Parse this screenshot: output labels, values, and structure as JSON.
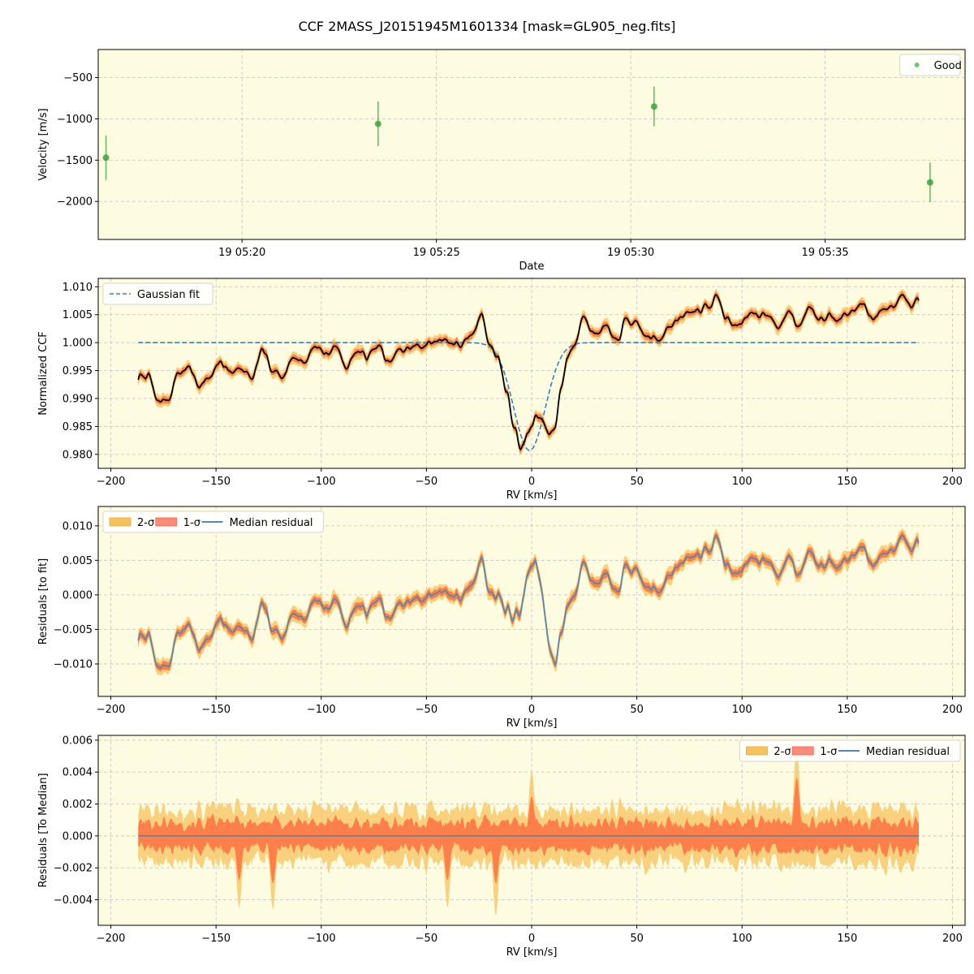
{
  "figure": {
    "title": "CCF 2MASS_J20151945M1601334 [mask=GL905_neg.fits]",
    "colors": {
      "axes_bg": "#fdfce1",
      "good": "#3ca53c",
      "gauss": "#3a7fb8",
      "ccf": "#000000",
      "two_sigma": "#f7c25a",
      "one_sigma": "#ff6a3d",
      "median": "#5b86ab",
      "grid": "#c8c8c8"
    }
  },
  "chart_data": [
    {
      "id": "velocity",
      "type": "scatter",
      "xlabel": "Date",
      "ylabel": "Velocity [m/s]",
      "x_unit": "minutes after 19 05:00",
      "xlim": [
        16.3,
        38.6
      ],
      "ylim": [
        -2460,
        -160
      ],
      "xticks": [
        20,
        25,
        30,
        35
      ],
      "xtick_labels": [
        "19 05:20",
        "19 05:25",
        "19 05:30",
        "19 05:35"
      ],
      "yticks": [
        -2000,
        -1500,
        -1000,
        -500
      ],
      "ytick_labels": [
        "−2000",
        "−1500",
        "−1000",
        "−500"
      ],
      "legend": {
        "position": "upper right",
        "entries": [
          "Good"
        ]
      },
      "series": [
        {
          "name": "Good",
          "x": [
            16.5,
            23.5,
            30.6,
            37.7
          ],
          "y": [
            -1470,
            -1060,
            -850,
            -1770
          ],
          "yerr": [
            270,
            270,
            240,
            240
          ]
        }
      ]
    },
    {
      "id": "ccf",
      "type": "line",
      "xlabel": "RV [km/s]",
      "ylabel": "Normalized CCF",
      "xlim": [
        -206,
        206
      ],
      "ylim": [
        0.9775,
        1.0115
      ],
      "xticks": [
        -200,
        -150,
        -100,
        -50,
        0,
        50,
        100,
        150,
        200
      ],
      "xtick_labels": [
        "−200",
        "−150",
        "−100",
        "−50",
        "0",
        "50",
        "100",
        "150",
        "200"
      ],
      "yticks": [
        0.98,
        0.985,
        0.99,
        0.995,
        1.0,
        1.005,
        1.01
      ],
      "ytick_labels": [
        "0.980",
        "0.985",
        "0.990",
        "0.995",
        "1.000",
        "1.005",
        "1.010"
      ],
      "legend": {
        "position": "upper left",
        "entries": [
          "Gaussian fit"
        ]
      },
      "gaussian_fit": {
        "name": "Gaussian fit",
        "amplitude": -0.0193,
        "center_kms": -1.0,
        "sigma_kms": 7.5,
        "baseline": 1.0,
        "x_range": [
          -187,
          184
        ]
      },
      "ccf_knots": {
        "x": [
          -187,
          -182,
          -178,
          -173,
          -168,
          -163,
          -158,
          -153,
          -148,
          -143,
          -138,
          -133,
          -128,
          -123,
          -118,
          -113,
          -108,
          -103,
          -98,
          -93,
          -88,
          -83,
          -78,
          -73,
          -68,
          -63,
          -58,
          -53,
          -48,
          -43,
          -38,
          -33,
          -28,
          -24,
          -20,
          -16,
          -12,
          -8,
          -5,
          -2,
          0,
          2,
          5,
          8,
          11,
          14,
          17,
          20,
          25,
          30,
          35,
          40,
          45,
          50,
          55,
          60,
          65,
          70,
          75,
          80,
          85,
          88,
          92,
          97,
          102,
          107,
          112,
          117,
          122,
          127,
          132,
          137,
          142,
          147,
          152,
          157,
          162,
          167,
          172,
          176,
          180,
          184
        ],
        "y": [
          0.994,
          0.994,
          0.9895,
          0.9898,
          0.9945,
          0.9955,
          0.9925,
          0.9935,
          0.9965,
          0.9948,
          0.9955,
          0.9935,
          0.9985,
          0.9945,
          0.9945,
          0.9975,
          0.9965,
          0.9995,
          0.998,
          0.9992,
          0.9958,
          0.9985,
          0.9975,
          0.9995,
          0.9962,
          0.9985,
          0.999,
          0.9995,
          0.9998,
          1.0008,
          1.0,
          0.9995,
          1.0015,
          1.0055,
          0.9995,
          0.9975,
          0.9915,
          0.9845,
          0.981,
          0.9835,
          0.985,
          0.9868,
          0.9862,
          0.984,
          0.9845,
          0.992,
          0.9975,
          0.9995,
          1.005,
          1.0015,
          1.003,
          1.0,
          1.004,
          1.003,
          1.001,
          1.0005,
          1.003,
          1.004,
          1.0055,
          1.006,
          1.0065,
          1.0085,
          1.0045,
          1.003,
          1.0045,
          1.005,
          1.0055,
          1.0025,
          1.0055,
          1.003,
          1.0065,
          1.0045,
          1.005,
          1.0045,
          1.0055,
          1.007,
          1.004,
          1.006,
          1.0065,
          1.009,
          1.0065,
          1.008
        ]
      },
      "band_halfwidth_1sigma": 0.0008,
      "band_halfwidth_2sigma": 0.0015
    },
    {
      "id": "residuals_fit",
      "type": "area",
      "xlabel": "RV [km/s]",
      "ylabel": "Residuals [to fit]",
      "xlim": [
        -206,
        206
      ],
      "ylim": [
        -0.0147,
        0.0128
      ],
      "xticks": [
        -200,
        -150,
        -100,
        -50,
        0,
        50,
        100,
        150,
        200
      ],
      "xtick_labels": [
        "−200",
        "−150",
        "−100",
        "−50",
        "0",
        "50",
        "100",
        "150",
        "200"
      ],
      "yticks": [
        -0.01,
        -0.005,
        0.0,
        0.005,
        0.01
      ],
      "ytick_labels": [
        "−0.010",
        "−0.005",
        "0.000",
        "0.005",
        "0.010"
      ],
      "legend": {
        "position": "upper left",
        "entries": [
          "2-σ",
          "1-σ",
          "Median residual"
        ]
      },
      "band_halfwidth_1sigma": 0.0008,
      "band_halfwidth_2sigma": 0.0015
    },
    {
      "id": "residuals_median",
      "type": "area",
      "xlabel": "RV [km/s]",
      "ylabel": "Residuals [To Median]",
      "xlim": [
        -206,
        206
      ],
      "ylim": [
        -0.0056,
        0.0063
      ],
      "xticks": [
        -200,
        -150,
        -100,
        -50,
        0,
        50,
        100,
        150,
        200
      ],
      "xtick_labels": [
        "−200",
        "−150",
        "−100",
        "−50",
        "0",
        "50",
        "100",
        "150",
        "200"
      ],
      "yticks": [
        -0.004,
        -0.002,
        0.0,
        0.002,
        0.004,
        0.006
      ],
      "ytick_labels": [
        "−0.004",
        "−0.002",
        "0.000",
        "0.002",
        "0.004",
        "0.006"
      ],
      "legend": {
        "position": "upper right",
        "entries": [
          "2-σ",
          "1-σ",
          "Median residual"
        ]
      },
      "median_value": 0.0,
      "x_range": [
        -187,
        184
      ],
      "one_sigma_typical": 0.0009,
      "two_sigma_typical": 0.0017,
      "spikes": [
        {
          "x": 126,
          "upper2": 0.0058,
          "upper1": 0.0037
        },
        {
          "x": -139,
          "lower2": -0.0045,
          "lower1": -0.0028
        },
        {
          "x": -123,
          "lower2": -0.0046,
          "lower1": -0.003
        },
        {
          "x": -40,
          "lower2": -0.0045,
          "lower1": -0.0028
        },
        {
          "x": -17,
          "lower2": -0.005,
          "lower1": -0.003
        },
        {
          "x": 0,
          "upper2": 0.0041,
          "upper1": 0.0025
        }
      ]
    }
  ]
}
